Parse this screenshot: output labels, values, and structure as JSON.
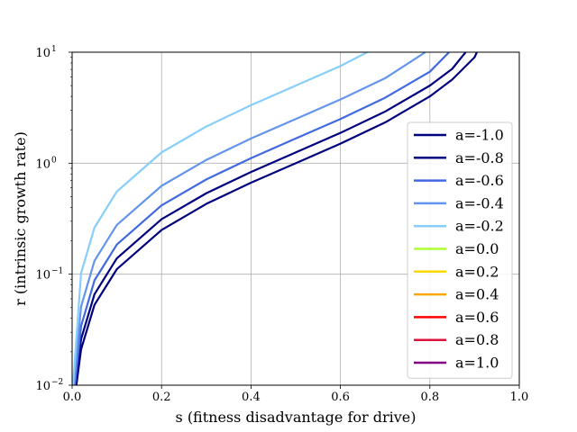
{
  "chart_data": {
    "type": "line",
    "xlabel": "s (fitness disadvantage for drive)",
    "ylabel": "r (intrinsic growth rate)",
    "xlim": [
      0.0,
      1.0
    ],
    "ylim": [
      0.01,
      10
    ],
    "yscale": "log",
    "grid": true,
    "legend_position": "lower-right",
    "x_ticks": [
      "0.0",
      "0.2",
      "0.4",
      "0.6",
      "0.8",
      "1.0"
    ],
    "y_ticks": [
      {
        "value": 0.01,
        "base": "10",
        "exp": "−2"
      },
      {
        "value": 0.1,
        "base": "10",
        "exp": "−1"
      },
      {
        "value": 1,
        "base": "10",
        "exp": "0"
      },
      {
        "value": 10,
        "base": "10",
        "exp": "1"
      }
    ],
    "series": [
      {
        "name": "a=-1.0",
        "color": "#00007f",
        "x": [
          0.0095,
          0.02,
          0.05,
          0.1,
          0.2,
          0.3,
          0.4,
          0.5,
          0.6,
          0.7,
          0.8,
          0.85,
          0.9,
          0.905
        ],
        "y": [
          0.01,
          0.021,
          0.053,
          0.111,
          0.25,
          0.43,
          0.667,
          1.0,
          1.5,
          2.33,
          4.0,
          5.67,
          9.0,
          10.0
        ]
      },
      {
        "name": "a=-0.8",
        "color": "#000080",
        "x": [
          0.0079,
          0.02,
          0.05,
          0.1,
          0.2,
          0.3,
          0.4,
          0.5,
          0.6,
          0.7,
          0.8,
          0.85,
          0.88
        ],
        "y": [
          0.01,
          0.026,
          0.066,
          0.139,
          0.313,
          0.536,
          0.833,
          1.25,
          1.875,
          2.92,
          5.0,
          7.08,
          10.0
        ]
      },
      {
        "name": "a=-0.6",
        "color": "#4169e1",
        "x": [
          0.006,
          0.02,
          0.05,
          0.1,
          0.2,
          0.3,
          0.4,
          0.5,
          0.6,
          0.7,
          0.8,
          0.843
        ],
        "y": [
          0.01,
          0.034,
          0.088,
          0.185,
          0.417,
          0.714,
          1.11,
          1.67,
          2.5,
          3.89,
          6.67,
          10.0
        ]
      },
      {
        "name": "a=-0.4",
        "color": "#6495ed",
        "x": [
          0.004,
          0.02,
          0.05,
          0.1,
          0.2,
          0.3,
          0.4,
          0.5,
          0.6,
          0.7,
          0.79
        ],
        "y": [
          0.01,
          0.051,
          0.132,
          0.278,
          0.625,
          1.07,
          1.67,
          2.5,
          3.75,
          5.83,
          10.0
        ]
      },
      {
        "name": "a=-0.2",
        "color": "#87cefa",
        "x": [
          0.002,
          0.02,
          0.05,
          0.1,
          0.2,
          0.3,
          0.4,
          0.5,
          0.6,
          0.66
        ],
        "y": [
          0.01,
          0.102,
          0.263,
          0.556,
          1.25,
          2.14,
          3.33,
          5.0,
          7.5,
          10.0
        ]
      },
      {
        "name": "a=0.0",
        "color": "#adff2f",
        "x": [],
        "y": []
      },
      {
        "name": "a=0.2",
        "color": "#ffd700",
        "x": [],
        "y": []
      },
      {
        "name": "a=0.4",
        "color": "#ffa500",
        "x": [],
        "y": []
      },
      {
        "name": "a=0.6",
        "color": "#ff0000",
        "x": [],
        "y": []
      },
      {
        "name": "a=0.8",
        "color": "#dc143c",
        "x": [],
        "y": []
      },
      {
        "name": "a=1.0",
        "color": "#800080",
        "x": [],
        "y": []
      }
    ]
  }
}
